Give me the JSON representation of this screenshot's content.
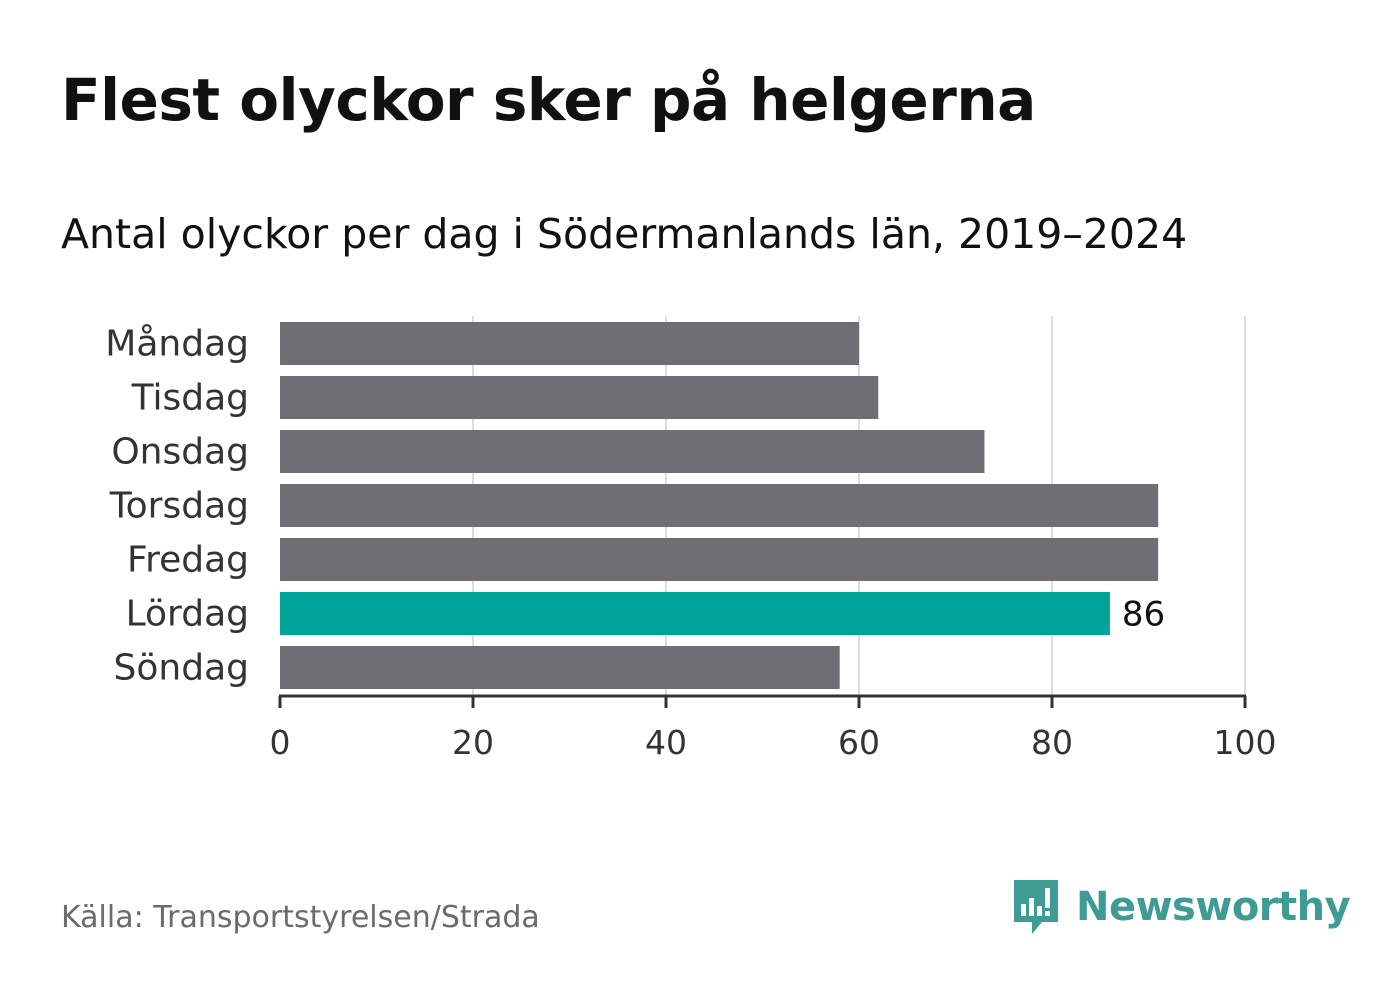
{
  "header": {
    "title": "Flest olyckor sker på helgerna",
    "subtitle": "Antal olyckor per dag i Södermanlands län, 2019–2024"
  },
  "chart_data": {
    "type": "bar",
    "orientation": "horizontal",
    "categories": [
      "Måndag",
      "Tisdag",
      "Onsdag",
      "Torsdag",
      "Fredag",
      "Lördag",
      "Söndag"
    ],
    "values": [
      60,
      62,
      73,
      91,
      91,
      86,
      58
    ],
    "highlight_index": 5,
    "data_labels": [
      {
        "index": 5,
        "text": "86"
      }
    ],
    "xlim": [
      0,
      100
    ],
    "xticks": [
      0,
      20,
      40,
      60,
      80,
      100
    ],
    "xtick_labels": [
      "0",
      "20",
      "40",
      "60",
      "80",
      "100"
    ],
    "grid": "vertical",
    "colors": {
      "bar": "#6f6e75",
      "highlight": "#00a398",
      "grid": "#dddddd",
      "axis": "#333333",
      "text": "#333333"
    }
  },
  "footer": {
    "source": "Källa: Transportstyrelsen/Strada",
    "brand_name": "Newsworthy",
    "brand_icon": "newsworthy-logo-icon",
    "brand_color": "#3e9c94"
  }
}
